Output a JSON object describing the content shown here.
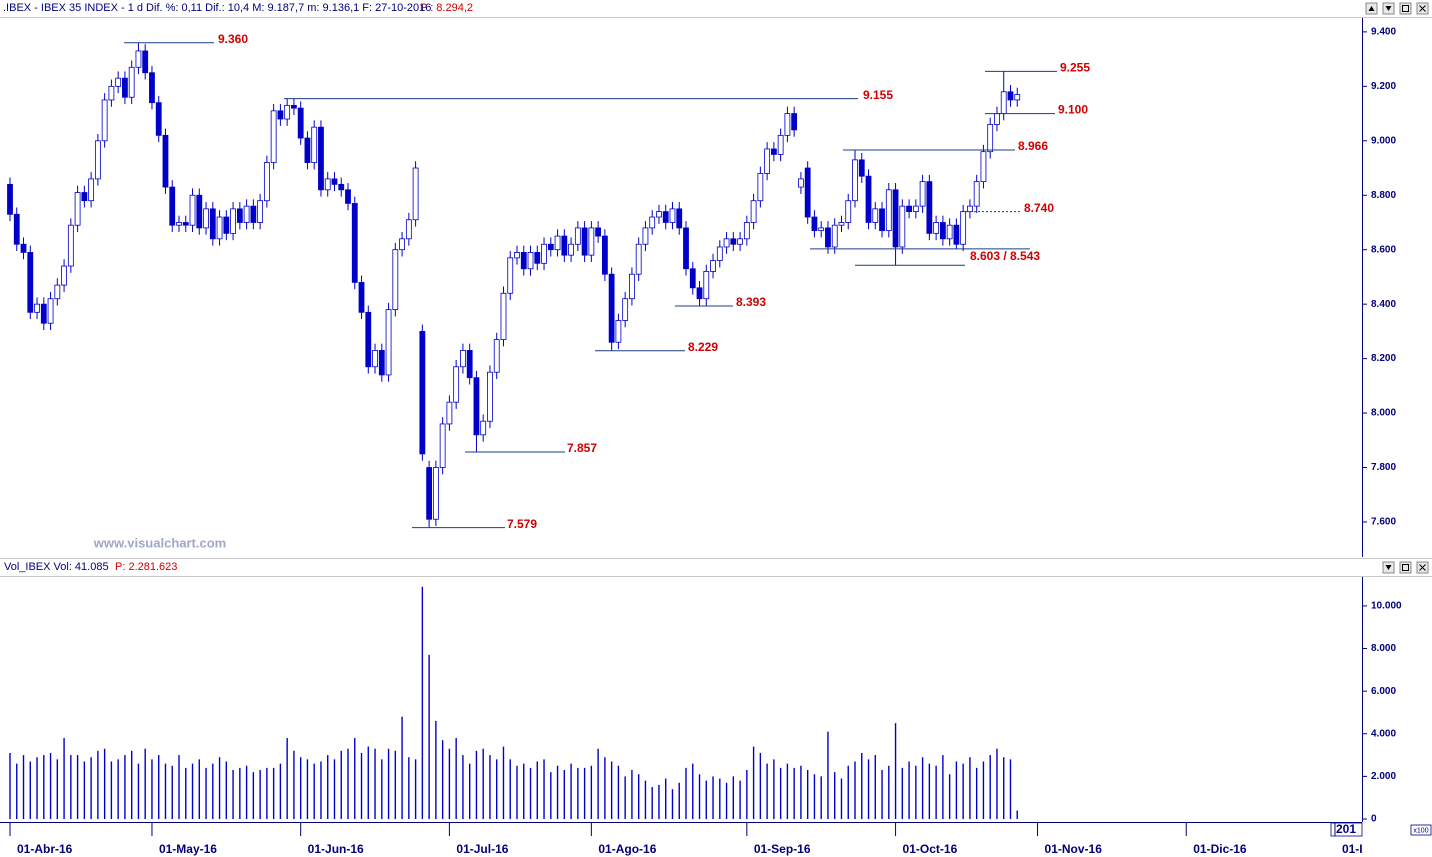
{
  "header": {
    "info": ".IBEX - IBEX 35 INDEX - 1 d  Dif. %: 0,11  Dif.: 10,4  M: 9.187,7  m: 9.136,1  F: 27-10-2016",
    "price": "P : 8.294,2"
  },
  "watermark": "www.visualchart.com",
  "chart_data": [
    {
      "type": "candlestick",
      "color": "#0000c8",
      "open": [
        8840,
        8730,
        8620,
        8590,
        8370,
        8400,
        8330,
        8420,
        8470,
        8540,
        8690,
        8810,
        8780,
        8860,
        9000,
        9150,
        9200,
        9230,
        9160,
        9270,
        9330,
        9250,
        9140,
        9020,
        8830,
        8690,
        8700,
        8690,
        8800,
        8680,
        8750,
        8640,
        8720,
        8660,
        8750,
        8700,
        8760,
        8700,
        8780,
        8920,
        9110,
        9080,
        9130,
        9120,
        9010,
        8920,
        9050,
        8820,
        8860,
        8840,
        8820,
        8770,
        8480,
        8370,
        8170,
        8230,
        8140,
        8380,
        8600,
        8640,
        8710,
        8300,
        7800,
        7610,
        7800,
        7960,
        8040,
        8170,
        8230,
        8130,
        7920,
        7970,
        8150,
        8270,
        8440,
        8570,
        8590,
        8530,
        8590,
        8550,
        8620,
        8600,
        8650,
        8580,
        8620,
        8680,
        8580,
        8680,
        8650,
        8510,
        8260,
        8340,
        8420,
        8510,
        8620,
        8680,
        8720,
        8740,
        8700,
        8750,
        8680,
        8530,
        8460,
        8420,
        8520,
        8560,
        8610,
        8640,
        8620,
        8640,
        8700,
        8780,
        8880,
        8970,
        8950,
        9020,
        9100,
        8830,
        8900,
        8720,
        8670,
        8680,
        8610,
        8690,
        8700,
        8780,
        8930,
        8870,
        8700,
        8750,
        8670,
        8820,
        8610,
        8760,
        8740,
        8760,
        8850,
        8660,
        8700,
        8640,
        8690,
        8620,
        8740,
        8760,
        8850,
        8960,
        9060,
        9100,
        9180,
        9150
      ],
      "high": [
        8865,
        8755,
        8645,
        8615,
        8425,
        8425,
        8445,
        8495,
        8565,
        8715,
        8835,
        8835,
        8885,
        9025,
        9175,
        9225,
        9255,
        9255,
        9295,
        9360,
        9355,
        9275,
        9165,
        9045,
        8855,
        8725,
        8725,
        8825,
        8825,
        8775,
        8775,
        8745,
        8745,
        8775,
        8775,
        8785,
        8785,
        8805,
        8945,
        9135,
        9135,
        9155,
        9155,
        9145,
        9035,
        9075,
        9075,
        8885,
        8885,
        8865,
        8845,
        8795,
        8505,
        8395,
        8255,
        8255,
        8405,
        8625,
        8665,
        8735,
        8925,
        8325,
        7825,
        7825,
        7985,
        8065,
        8195,
        8255,
        8255,
        8155,
        7995,
        8175,
        8295,
        8465,
        8595,
        8615,
        8615,
        8615,
        8615,
        8645,
        8645,
        8675,
        8675,
        8645,
        8705,
        8705,
        8705,
        8705,
        8675,
        8535,
        8365,
        8445,
        8535,
        8645,
        8705,
        8745,
        8765,
        8765,
        8775,
        8775,
        8705,
        8555,
        8485,
        8545,
        8585,
        8635,
        8665,
        8665,
        8665,
        8725,
        8805,
        8905,
        8995,
        8995,
        9045,
        9125,
        9125,
        8885,
        8925,
        8745,
        8705,
        8705,
        8715,
        8725,
        8805,
        8966,
        8955,
        8895,
        8775,
        8775,
        8845,
        8845,
        8785,
        8785,
        8785,
        8875,
        8875,
        8725,
        8725,
        8715,
        8715,
        8765,
        8785,
        8875,
        8985,
        9085,
        9125,
        9255,
        9205,
        9195
      ],
      "low": [
        8705,
        8595,
        8565,
        8345,
        8345,
        8305,
        8305,
        8395,
        8445,
        8515,
        8665,
        8755,
        8755,
        8835,
        8975,
        9125,
        9175,
        9135,
        9135,
        9245,
        9225,
        9115,
        8995,
        8805,
        8665,
        8665,
        8665,
        8665,
        8655,
        8655,
        8615,
        8615,
        8635,
        8635,
        8675,
        8675,
        8675,
        8675,
        8755,
        8895,
        9055,
        9055,
        9095,
        8985,
        8895,
        8895,
        8795,
        8795,
        8815,
        8795,
        8745,
        8455,
        8345,
        8145,
        8145,
        8115,
        8115,
        8355,
        8575,
        8615,
        8685,
        7825,
        7579,
        7585,
        7775,
        7935,
        8015,
        8145,
        8105,
        7857,
        7895,
        7945,
        8125,
        8245,
        8415,
        8545,
        8505,
        8505,
        8525,
        8525,
        8575,
        8575,
        8555,
        8555,
        8595,
        8555,
        8555,
        8625,
        8485,
        8229,
        8235,
        8315,
        8395,
        8485,
        8595,
        8655,
        8695,
        8675,
        8675,
        8655,
        8505,
        8435,
        8393,
        8395,
        8495,
        8535,
        8585,
        8595,
        8595,
        8615,
        8675,
        8755,
        8855,
        8925,
        8925,
        8995,
        9015,
        8805,
        8695,
        8645,
        8645,
        8585,
        8585,
        8665,
        8675,
        8755,
        8845,
        8675,
        8675,
        8645,
        8645,
        8543,
        8585,
        8715,
        8715,
        8735,
        8635,
        8635,
        8615,
        8615,
        8603,
        8595,
        8715,
        8735,
        8825,
        8935,
        9035,
        9075,
        9125,
        9125
      ],
      "close": [
        8730,
        8620,
        8590,
        8370,
        8400,
        8330,
        8420,
        8470,
        8540,
        8690,
        8810,
        8780,
        8860,
        9000,
        9150,
        9200,
        9230,
        9160,
        9270,
        9330,
        9250,
        9140,
        9020,
        8830,
        8690,
        8700,
        8690,
        8800,
        8680,
        8750,
        8640,
        8720,
        8660,
        8750,
        8700,
        8760,
        8700,
        8780,
        8920,
        9110,
        9080,
        9130,
        9120,
        9010,
        8920,
        9050,
        8820,
        8860,
        8840,
        8820,
        8770,
        8480,
        8370,
        8170,
        8230,
        8140,
        8380,
        8600,
        8640,
        8710,
        8900,
        7850,
        7610,
        7800,
        7960,
        8040,
        8170,
        8230,
        8130,
        7920,
        7970,
        8150,
        8270,
        8440,
        8570,
        8590,
        8530,
        8590,
        8550,
        8620,
        8600,
        8650,
        8580,
        8620,
        8680,
        8580,
        8680,
        8650,
        8510,
        8260,
        8340,
        8420,
        8510,
        8620,
        8680,
        8720,
        8740,
        8700,
        8750,
        8680,
        8530,
        8460,
        8420,
        8520,
        8560,
        8610,
        8640,
        8620,
        8640,
        8700,
        8780,
        8880,
        8970,
        8950,
        9020,
        9100,
        9040,
        8860,
        8720,
        8670,
        8680,
        8610,
        8690,
        8700,
        8780,
        8930,
        8870,
        8700,
        8750,
        8670,
        8820,
        8610,
        8760,
        8740,
        8760,
        8850,
        8660,
        8700,
        8640,
        8690,
        8620,
        8740,
        8760,
        8850,
        8960,
        9060,
        9100,
        9180,
        9150,
        9170
      ],
      "ylim": [
        7475,
        9451
      ],
      "yticks": [
        {
          "value": 7600,
          "label": "7.600"
        },
        {
          "value": 7800,
          "label": "7.800"
        },
        {
          "value": 8000,
          "label": "8.000"
        },
        {
          "value": 8200,
          "label": "8.200"
        },
        {
          "value": 8400,
          "label": "8.400"
        },
        {
          "value": 8600,
          "label": "8.600"
        },
        {
          "value": 8800,
          "label": "8.800"
        },
        {
          "value": 9000,
          "label": "9.000"
        },
        {
          "value": 9200,
          "label": "9.200"
        },
        {
          "value": 9400,
          "label": "9.400"
        }
      ],
      "xticks": [
        {
          "value": 0,
          "label": "01-Abr-16"
        },
        {
          "value": 21,
          "label": "01-May-16"
        },
        {
          "value": 43,
          "label": "01-Jun-16"
        },
        {
          "value": 65,
          "label": "01-Jul-16"
        },
        {
          "value": 86,
          "label": "01-Ago-16"
        },
        {
          "value": 109,
          "label": "01-Sep-16"
        },
        {
          "value": 131,
          "label": "01-Oct-16"
        },
        {
          "value": 152,
          "label": "01-Nov-16"
        },
        {
          "value": 174,
          "label": "01-Dic-16"
        },
        {
          "value": 196,
          "label": "01-I"
        }
      ],
      "annotations": [
        {
          "label": "9.360",
          "values": [
            9360
          ]
        },
        {
          "label": "9.155",
          "values": [
            9155
          ]
        },
        {
          "label": "9.255",
          "values": [
            9255
          ]
        },
        {
          "label": "9.100",
          "values": [
            9100
          ]
        },
        {
          "label": "8.966",
          "values": [
            8966
          ]
        },
        {
          "label": "8.740",
          "values": [
            8740
          ]
        },
        {
          "label": "8.603 / 8.543",
          "values": [
            8603,
            8543
          ]
        },
        {
          "label": "8.393",
          "values": [
            8393
          ]
        },
        {
          "label": "8.229",
          "values": [
            8229
          ]
        },
        {
          "label": "7.857",
          "values": [
            7857
          ]
        },
        {
          "label": "7.579",
          "values": [
            7579
          ]
        }
      ]
    },
    {
      "type": "bar",
      "title": "Vol_IBEX Vol: 41.085",
      "subtitle": "P: 2.281.623",
      "color": "#0000c8",
      "unit_label": "x100",
      "corner_label": "201",
      "values": [
        3100,
        2600,
        3000,
        2700,
        2900,
        3000,
        3100,
        2800,
        3800,
        3000,
        3000,
        2700,
        2900,
        3200,
        3300,
        2700,
        2800,
        3000,
        3200,
        2600,
        3300,
        2800,
        3000,
        2600,
        2500,
        3000,
        2400,
        2600,
        2800,
        2400,
        2600,
        2900,
        2700,
        2300,
        2400,
        2500,
        2200,
        2300,
        2400,
        2400,
        2600,
        3800,
        3200,
        2900,
        2800,
        2600,
        2700,
        3000,
        2800,
        3200,
        3300,
        3800,
        3100,
        3400,
        3300,
        2800,
        3300,
        3200,
        4800,
        2900,
        2800,
        10900,
        7700,
        4600,
        3700,
        3300,
        3800,
        3000,
        2600,
        3200,
        3300,
        3000,
        2800,
        3400,
        2800,
        2500,
        2600,
        2400,
        2700,
        2800,
        2200,
        2500,
        2300,
        2600,
        2400,
        2400,
        2500,
        3300,
        2900,
        2700,
        2500,
        2000,
        2300,
        2100,
        1800,
        1500,
        1600,
        1900,
        1400,
        1700,
        2400,
        2600,
        2100,
        1800,
        2000,
        1900,
        1700,
        2000,
        1800,
        2300,
        3400,
        3100,
        2600,
        2800,
        2400,
        2600,
        2400,
        2500,
        2300,
        2100,
        2000,
        4100,
        2200,
        1900,
        2500,
        2700,
        3100,
        2800,
        3000,
        2300,
        2500,
        4500,
        2400,
        2700,
        2500,
        2900,
        2600,
        2500,
        3000,
        2100,
        2700,
        2600,
        2900,
        2400,
        2700,
        3000,
        3300,
        2900,
        2800,
        400
      ],
      "ylim": [
        -140,
        11310
      ],
      "yticks": [
        0,
        {
          "value": 2000,
          "label": "2.000"
        },
        {
          "value": 4000,
          "label": "4.000"
        },
        {
          "value": 6000,
          "label": "6.000"
        },
        {
          "value": 8000,
          "label": "8.000"
        },
        {
          "value": 10000,
          "label": "10.000"
        }
      ]
    }
  ]
}
